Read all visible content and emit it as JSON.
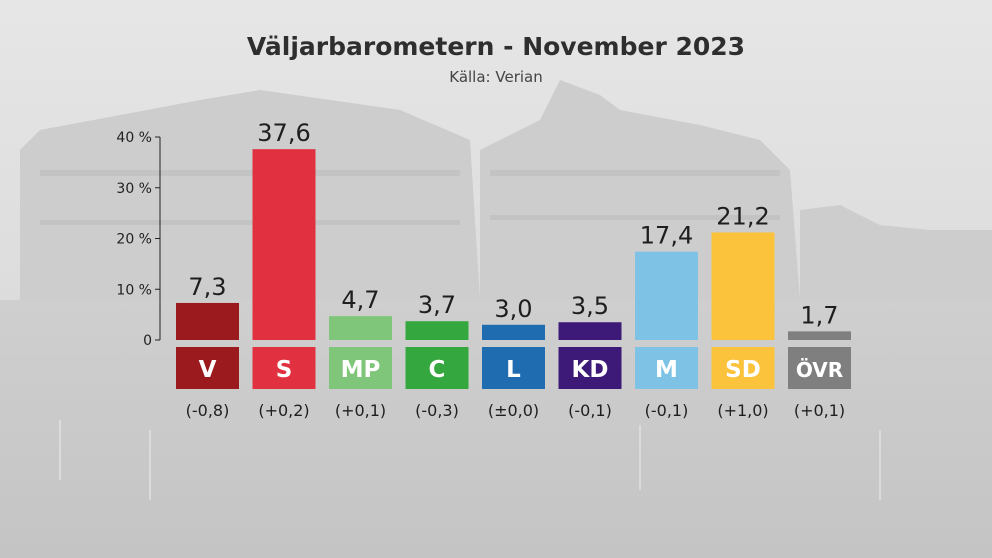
{
  "header": {
    "title": "Väljarbarometern - November 2023",
    "source": "Källa: Verian"
  },
  "chart_data": {
    "type": "bar",
    "title": "Väljarbarometern - November 2023",
    "subtitle": "Källa: Verian",
    "categories": [
      "V",
      "S",
      "MP",
      "C",
      "L",
      "KD",
      "M",
      "SD",
      "ÖVR"
    ],
    "values": [
      7.3,
      37.6,
      4.7,
      3.7,
      3.0,
      3.5,
      17.4,
      21.2,
      1.7
    ],
    "value_labels": [
      "7,3",
      "37,6",
      "4,7",
      "3,7",
      "3,0",
      "3,5",
      "17,4",
      "21,2",
      "1,7"
    ],
    "changes": [
      "(-0,8)",
      "(+0,2)",
      "(+0,1)",
      "(-0,3)",
      "(±0,0)",
      "(-0,1)",
      "(-0,1)",
      "(+1,0)",
      "(+0,1)"
    ],
    "colors": [
      "#9b1a1e",
      "#e1303f",
      "#7fc67a",
      "#34a83f",
      "#1f6cb0",
      "#3d1a78",
      "#7ec2e6",
      "#fbc23c",
      "#7f7f7f"
    ],
    "y_ticks": [
      "0",
      "10 %",
      "20 %",
      "30 %",
      "40 %"
    ],
    "y_tick_values": [
      0,
      10,
      20,
      30,
      40
    ],
    "ylim": [
      0,
      40
    ],
    "grid": false,
    "legend": "none"
  }
}
